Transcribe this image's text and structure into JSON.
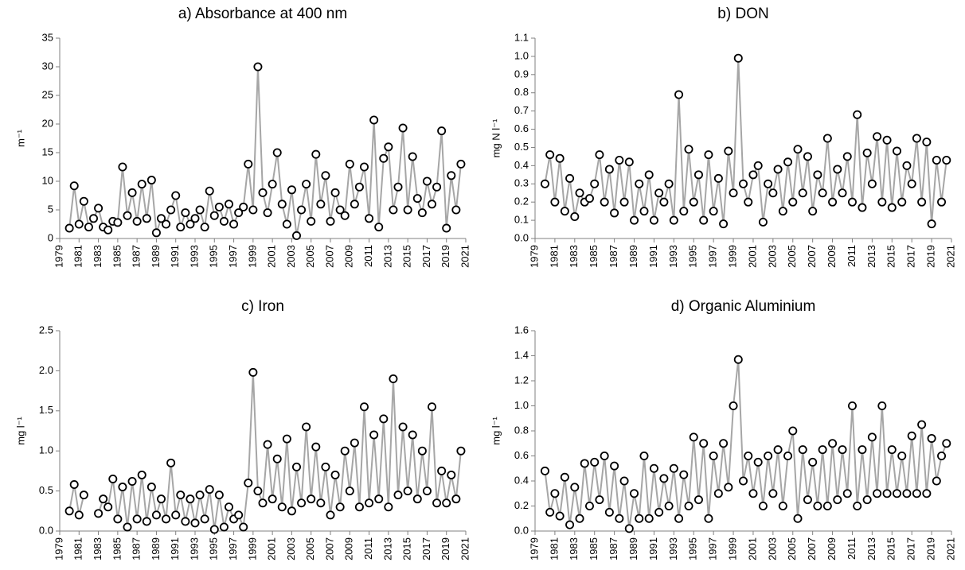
{
  "chart_data": [
    {
      "type": "line",
      "title": "a) Absorbance at 400 nm",
      "ylabel": "m⁻¹",
      "line_color": "#a6a6a6",
      "marker_fill": "#ffffff",
      "marker_edge": "#000000",
      "x": [
        1980,
        1980.5,
        1981,
        1981.5,
        1982,
        1982.5,
        1983,
        1983.5,
        1984,
        1984.5,
        1985,
        1985.5,
        1986,
        1986.5,
        1987,
        1987.5,
        1988,
        1988.5,
        1989,
        1989.5,
        1990,
        1990.5,
        1991,
        1991.5,
        1992,
        1992.5,
        1993,
        1993.5,
        1994,
        1994.5,
        1995,
        1995.5,
        1996,
        1996.5,
        1997,
        1997.5,
        1998,
        1998.5,
        1999,
        1999.5,
        2000,
        2000.5,
        2001,
        2001.5,
        2002,
        2002.5,
        2003,
        2003.5,
        2004,
        2004.5,
        2005,
        2005.5,
        2006,
        2006.5,
        2007,
        2007.5,
        2008,
        2008.5,
        2009,
        2009.5,
        2010,
        2010.5,
        2011,
        2011.5,
        2012,
        2012.5,
        2013,
        2013.5,
        2014,
        2014.5,
        2015,
        2015.5,
        2016,
        2016.5,
        2017,
        2017.5,
        2018,
        2018.5,
        2019,
        2019.5,
        2020,
        2020.5
      ],
      "values": [
        1.8,
        9.2,
        2.5,
        6.5,
        2.0,
        3.5,
        5.3,
        2.0,
        1.5,
        3.0,
        2.8,
        12.5,
        4.0,
        8.0,
        3.0,
        9.5,
        3.5,
        10.2,
        1.0,
        3.5,
        2.5,
        5.0,
        7.5,
        2.0,
        4.5,
        2.5,
        3.5,
        5.0,
        2.0,
        8.3,
        4.0,
        5.5,
        3.0,
        6.0,
        2.5,
        4.5,
        5.5,
        13.0,
        5.0,
        30.0,
        8.0,
        4.5,
        9.5,
        15.0,
        6.0,
        2.5,
        8.5,
        0.5,
        5.0,
        9.5,
        3.0,
        14.7,
        6.0,
        11.0,
        3.0,
        8.0,
        5.0,
        4.0,
        13.0,
        6.0,
        9.0,
        12.5,
        3.5,
        20.7,
        2.0,
        14.0,
        16.0,
        5.0,
        9.0,
        19.3,
        5.0,
        14.3,
        7.0,
        4.5,
        10.0,
        6.0,
        9.0,
        18.8,
        1.8,
        11.0,
        5.0,
        13.0
      ],
      "xlim": [
        1979,
        2021
      ],
      "xticks": [
        1979,
        1981,
        1983,
        1985,
        1987,
        1989,
        1991,
        1993,
        1995,
        1997,
        1999,
        2001,
        2003,
        2005,
        2007,
        2009,
        2011,
        2013,
        2015,
        2017,
        2019,
        2021
      ],
      "ylim": [
        0,
        35
      ],
      "yticks": [
        0,
        5,
        10,
        15,
        20,
        25,
        30,
        35
      ]
    },
    {
      "type": "line",
      "title": "b) DON",
      "ylabel": "mg N l⁻¹",
      "line_color": "#a6a6a6",
      "marker_fill": "#ffffff",
      "marker_edge": "#000000",
      "x": [
        1980,
        1980.5,
        1981,
        1981.5,
        1982,
        1982.5,
        1983,
        1983.5,
        1984,
        1984.5,
        1985,
        1985.5,
        1986,
        1986.5,
        1987,
        1987.5,
        1988,
        1988.5,
        1989,
        1989.5,
        1990,
        1990.5,
        1991,
        1991.5,
        1992,
        1992.5,
        1993,
        1993.5,
        1994,
        1994.5,
        1995,
        1995.5,
        1996,
        1996.5,
        1997,
        1997.5,
        1998,
        1998.5,
        1999,
        1999.5,
        2000,
        2000.5,
        2001,
        2001.5,
        2002,
        2002.5,
        2003,
        2003.5,
        2004,
        2004.5,
        2005,
        2005.5,
        2006,
        2006.5,
        2007,
        2007.5,
        2008,
        2008.5,
        2009,
        2009.5,
        2010,
        2010.5,
        2011,
        2011.5,
        2012,
        2012.5,
        2013,
        2013.5,
        2014,
        2014.5,
        2015,
        2015.5,
        2016,
        2016.5,
        2017,
        2017.5,
        2018,
        2018.5,
        2019,
        2019.5,
        2020,
        2020.5
      ],
      "values": [
        0.3,
        0.46,
        0.2,
        0.44,
        0.15,
        0.33,
        0.12,
        0.25,
        0.2,
        0.22,
        0.3,
        0.46,
        0.2,
        0.38,
        0.14,
        0.43,
        0.2,
        0.42,
        0.1,
        0.3,
        0.15,
        0.35,
        0.1,
        0.25,
        0.2,
        0.3,
        0.1,
        0.79,
        0.15,
        0.49,
        0.2,
        0.35,
        0.1,
        0.46,
        0.15,
        0.33,
        0.08,
        0.48,
        0.25,
        0.99,
        0.3,
        0.2,
        0.35,
        0.4,
        0.09,
        0.3,
        0.25,
        0.38,
        0.15,
        0.42,
        0.2,
        0.49,
        0.25,
        0.45,
        0.15,
        0.35,
        0.25,
        0.55,
        0.2,
        0.38,
        0.25,
        0.45,
        0.2,
        0.68,
        0.17,
        0.47,
        0.3,
        0.56,
        0.2,
        0.54,
        0.17,
        0.48,
        0.2,
        0.4,
        0.3,
        0.55,
        0.2,
        0.53,
        0.08,
        0.43,
        0.2,
        0.43
      ],
      "xlim": [
        1979,
        2021
      ],
      "xticks": [
        1979,
        1981,
        1983,
        1985,
        1987,
        1989,
        1991,
        1993,
        1995,
        1997,
        1999,
        2001,
        2003,
        2005,
        2007,
        2009,
        2011,
        2013,
        2015,
        2017,
        2019,
        2021
      ],
      "ylim": [
        0,
        1.1
      ],
      "yticks": [
        {
          "value": 0,
          "label": "0.0"
        },
        0.1,
        0.2,
        0.3,
        0.4,
        0.5,
        0.6,
        0.7,
        0.8,
        0.9,
        {
          "value": 1,
          "label": "1.0"
        },
        1.1
      ]
    },
    {
      "type": "line",
      "title": "c) Iron",
      "ylabel": "mg l⁻¹",
      "line_color": "#a6a6a6",
      "marker_fill": "#ffffff",
      "marker_edge": "#000000",
      "x": [
        1980,
        1980.5,
        1981,
        1981.5,
        1982,
        1982.5,
        1983,
        1983.5,
        1984,
        1984.5,
        1985,
        1985.5,
        1986,
        1986.5,
        1987,
        1987.5,
        1988,
        1988.5,
        1989,
        1989.5,
        1990,
        1990.5,
        1991,
        1991.5,
        1992,
        1992.5,
        1993,
        1993.5,
        1994,
        1994.5,
        1995,
        1995.5,
        1996,
        1996.5,
        1997,
        1997.5,
        1998,
        1998.5,
        1999,
        1999.5,
        2000,
        2000.5,
        2001,
        2001.5,
        2002,
        2002.5,
        2003,
        2003.5,
        2004,
        2004.5,
        2005,
        2005.5,
        2006,
        2006.5,
        2007,
        2007.5,
        2008,
        2008.5,
        2009,
        2009.5,
        2010,
        2010.5,
        2011,
        2011.5,
        2012,
        2012.5,
        2013,
        2013.5,
        2014,
        2014.5,
        2015,
        2015.5,
        2016,
        2016.5,
        2017,
        2017.5,
        2018,
        2018.5,
        2019,
        2019.5,
        2020,
        2020.5
      ],
      "values": [
        0.25,
        0.58,
        0.2,
        0.45,
        null,
        null,
        0.22,
        0.4,
        0.3,
        0.65,
        0.15,
        0.55,
        0.05,
        0.62,
        0.15,
        0.7,
        0.12,
        0.55,
        0.2,
        0.4,
        0.15,
        0.85,
        0.2,
        0.45,
        0.12,
        0.4,
        0.1,
        0.45,
        0.15,
        0.52,
        0.02,
        0.45,
        0.05,
        0.3,
        0.15,
        0.2,
        0.05,
        0.6,
        1.98,
        0.5,
        0.35,
        1.08,
        0.4,
        0.9,
        0.3,
        1.15,
        0.25,
        0.8,
        0.35,
        1.3,
        0.4,
        1.05,
        0.35,
        0.8,
        0.2,
        0.7,
        0.3,
        1.0,
        0.5,
        1.1,
        0.3,
        1.55,
        0.35,
        1.2,
        0.4,
        1.4,
        0.3,
        1.9,
        0.45,
        1.3,
        0.5,
        1.2,
        0.4,
        1.0,
        0.5,
        1.55,
        0.35,
        0.75,
        0.35,
        0.7,
        0.4,
        1.0
      ],
      "xlim": [
        1979,
        2021
      ],
      "xticks": [
        1979,
        1981,
        1983,
        1985,
        1987,
        1989,
        1991,
        1993,
        1995,
        1997,
        1999,
        2001,
        2003,
        2005,
        2007,
        2009,
        2011,
        2013,
        2015,
        2017,
        2019,
        2021
      ],
      "ylim": [
        0,
        2.5
      ],
      "yticks": [
        {
          "value": 0,
          "label": "0.0"
        },
        0.5,
        {
          "value": 1,
          "label": "1.0"
        },
        1.5,
        {
          "value": 2,
          "label": "2.0"
        },
        2.5
      ]
    },
    {
      "type": "line",
      "title": "d) Organic Aluminium",
      "ylabel": "mg l⁻¹",
      "line_color": "#a6a6a6",
      "marker_fill": "#ffffff",
      "marker_edge": "#000000",
      "x": [
        1980,
        1980.5,
        1981,
        1981.5,
        1982,
        1982.5,
        1983,
        1983.5,
        1984,
        1984.5,
        1985,
        1985.5,
        1986,
        1986.5,
        1987,
        1987.5,
        1988,
        1988.5,
        1989,
        1989.5,
        1990,
        1990.5,
        1991,
        1991.5,
        1992,
        1992.5,
        1993,
        1993.5,
        1994,
        1994.5,
        1995,
        1995.5,
        1996,
        1996.5,
        1997,
        1997.5,
        1998,
        1998.5,
        1999,
        1999.5,
        2000,
        2000.5,
        2001,
        2001.5,
        2002,
        2002.5,
        2003,
        2003.5,
        2004,
        2004.5,
        2005,
        2005.5,
        2006,
        2006.5,
        2007,
        2007.5,
        2008,
        2008.5,
        2009,
        2009.5,
        2010,
        2010.5,
        2011,
        2011.5,
        2012,
        2012.5,
        2013,
        2013.5,
        2014,
        2014.5,
        2015,
        2015.5,
        2016,
        2016.5,
        2017,
        2017.5,
        2018,
        2018.5,
        2019,
        2019.5,
        2020,
        2020.5
      ],
      "values": [
        0.48,
        0.15,
        0.3,
        0.12,
        0.43,
        0.05,
        0.35,
        0.1,
        0.54,
        0.2,
        0.55,
        0.25,
        0.6,
        0.15,
        0.52,
        0.1,
        0.4,
        0.02,
        0.3,
        0.1,
        0.6,
        0.1,
        0.5,
        0.15,
        0.42,
        0.2,
        0.5,
        0.1,
        0.45,
        0.2,
        0.75,
        0.25,
        0.7,
        0.1,
        0.6,
        0.3,
        0.7,
        0.35,
        1.0,
        1.37,
        0.4,
        0.6,
        0.3,
        0.55,
        0.2,
        0.6,
        0.3,
        0.65,
        0.2,
        0.6,
        0.8,
        0.1,
        0.65,
        0.25,
        0.55,
        0.2,
        0.65,
        0.2,
        0.7,
        0.25,
        0.65,
        0.3,
        1.0,
        0.2,
        0.65,
        0.25,
        0.75,
        0.3,
        1.0,
        0.3,
        0.65,
        0.3,
        0.6,
        0.3,
        0.76,
        0.3,
        0.85,
        0.3,
        0.74,
        0.4,
        0.6,
        0.7
      ],
      "xlim": [
        1979,
        2021
      ],
      "xticks": [
        1979,
        1981,
        1983,
        1985,
        1987,
        1989,
        1991,
        1993,
        1995,
        1997,
        1999,
        2001,
        2003,
        2005,
        2007,
        2009,
        2011,
        2013,
        2015,
        2017,
        2019,
        2021
      ],
      "ylim": [
        0,
        1.6
      ],
      "yticks": [
        {
          "value": 0,
          "label": "0.0"
        },
        0.2,
        0.4,
        0.6,
        0.8,
        {
          "value": 1,
          "label": "1.0"
        },
        1.2,
        1.4,
        1.6
      ]
    }
  ]
}
